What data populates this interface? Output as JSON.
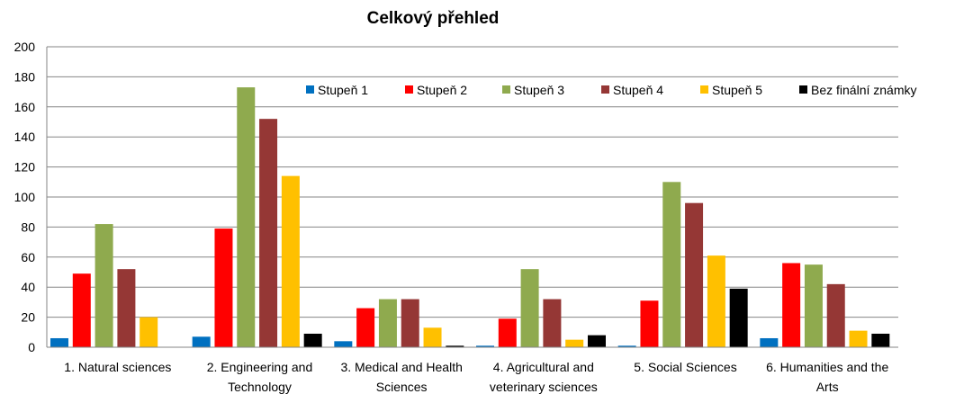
{
  "chart_data": {
    "type": "bar",
    "title": "Celkový přehled",
    "xlabel": "",
    "ylabel": "",
    "ylim": [
      0,
      200
    ],
    "yticks": [
      0,
      20,
      40,
      60,
      80,
      100,
      120,
      140,
      160,
      180,
      200
    ],
    "grid": true,
    "legend_position": "top-right",
    "categories": [
      [
        "1. Natural sciences"
      ],
      [
        "2. Engineering and",
        "Technology"
      ],
      [
        "3. Medical and Health",
        "Sciences"
      ],
      [
        "4. Agricultural and",
        "veterinary sciences"
      ],
      [
        "5. Social Sciences"
      ],
      [
        "6. Humanities and the",
        "Arts"
      ]
    ],
    "series": [
      {
        "name": "Stupeň 1",
        "color": "#0070C0",
        "values": [
          6,
          7,
          4,
          1,
          1,
          6
        ]
      },
      {
        "name": "Stupeň 2",
        "color": "#FF0000",
        "values": [
          49,
          79,
          26,
          19,
          31,
          56
        ]
      },
      {
        "name": "Stupeň 3",
        "color": "#8FAA4E",
        "values": [
          82,
          173,
          32,
          52,
          110,
          55
        ]
      },
      {
        "name": "Stupeň 4",
        "color": "#953735",
        "values": [
          52,
          152,
          32,
          32,
          96,
          42
        ]
      },
      {
        "name": "Stupeň 5",
        "color": "#FFC000",
        "values": [
          20,
          114,
          13,
          5,
          61,
          11
        ]
      },
      {
        "name": "Bez finální známky",
        "color": "#000000",
        "values": [
          0,
          9,
          1,
          8,
          39,
          9
        ]
      }
    ]
  }
}
